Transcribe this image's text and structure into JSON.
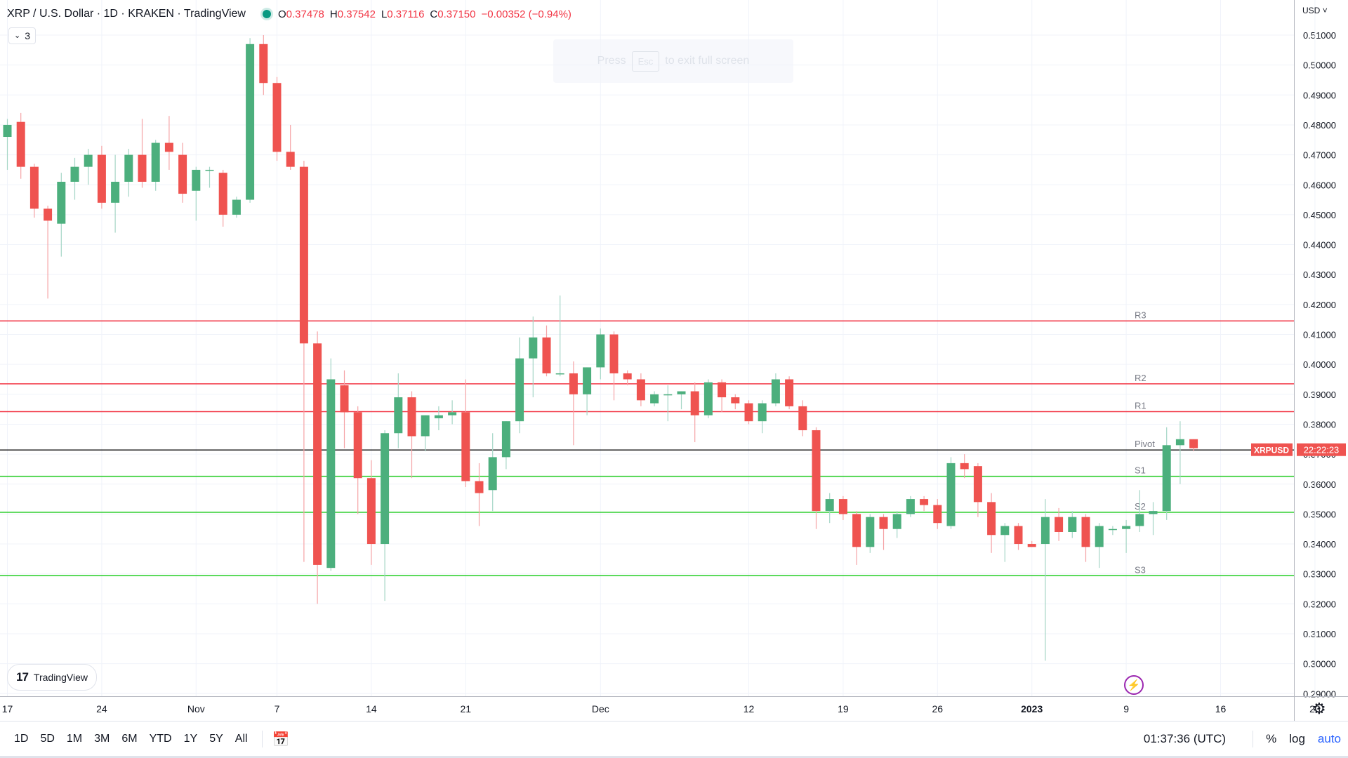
{
  "header": {
    "title": "XRP / U.S. Dollar · 1D · KRAKEN · TradingView",
    "open_label": "O",
    "open": "0.37478",
    "high_label": "H",
    "high": "0.37542",
    "low_label": "L",
    "low": "0.37116",
    "close_label": "C",
    "close": "0.37150",
    "change": "−0.00352 (−0.94%)"
  },
  "indicators_count": "3",
  "fullscreen_hint": {
    "press": "Press",
    "key": "Esc",
    "rest": "to exit full screen"
  },
  "currency": "USD",
  "logo_text": "TradingView",
  "price_label": {
    "symbol": "XRPUSD",
    "countdown": "22:22:23"
  },
  "colors": {
    "up": "#26a69a",
    "up_body": "#4caf7d",
    "down": "#ef5350",
    "resistance": "#f23645",
    "support": "#22cc22",
    "pivot": "#000000",
    "accent": "#2962ff"
  },
  "timeframes": [
    "1D",
    "5D",
    "1M",
    "3M",
    "6M",
    "YTD",
    "1Y",
    "5Y",
    "All"
  ],
  "clock": "01:37:36 (UTC)",
  "right_tools": {
    "percent": "%",
    "log": "log",
    "auto": "auto"
  },
  "icons": [
    "settings-gear-icon",
    "compare-calendar-icon",
    "lightning-icon",
    "chevron-down-icon",
    "indicators-eye-icon"
  ],
  "chart_data": {
    "type": "candlestick",
    "ylim": [
      0.29,
      0.51
    ],
    "y_ticks": [
      "0.51000",
      "0.50000",
      "0.49000",
      "0.48000",
      "0.47000",
      "0.46000",
      "0.45000",
      "0.44000",
      "0.43000",
      "0.42000",
      "0.41000",
      "0.40000",
      "0.39000",
      "0.38000",
      "0.37000",
      "0.36000",
      "0.35000",
      "0.34000",
      "0.33000",
      "0.32000",
      "0.31000",
      "0.30000",
      "0.29000"
    ],
    "x_ticks": [
      {
        "label": "17",
        "i": 0
      },
      {
        "label": "24",
        "i": 7
      },
      {
        "label": "Nov",
        "i": 14
      },
      {
        "label": "7",
        "i": 20
      },
      {
        "label": "14",
        "i": 27
      },
      {
        "label": "21",
        "i": 34
      },
      {
        "label": "Dec",
        "i": 44
      },
      {
        "label": "12",
        "i": 55
      },
      {
        "label": "19",
        "i": 62
      },
      {
        "label": "26",
        "i": 69
      },
      {
        "label": "2023",
        "i": 76
      },
      {
        "label": "9",
        "i": 83
      },
      {
        "label": "16",
        "i": 90
      },
      {
        "label": "23",
        "i": 97
      }
    ],
    "candles": [
      {
        "o": 0.476,
        "h": 0.482,
        "l": 0.465,
        "c": 0.48
      },
      {
        "o": 0.481,
        "h": 0.484,
        "l": 0.462,
        "c": 0.466
      },
      {
        "o": 0.466,
        "h": 0.467,
        "l": 0.449,
        "c": 0.452
      },
      {
        "o": 0.452,
        "h": 0.453,
        "l": 0.422,
        "c": 0.448
      },
      {
        "o": 0.447,
        "h": 0.464,
        "l": 0.436,
        "c": 0.461
      },
      {
        "o": 0.461,
        "h": 0.469,
        "l": 0.455,
        "c": 0.466
      },
      {
        "o": 0.466,
        "h": 0.472,
        "l": 0.46,
        "c": 0.47
      },
      {
        "o": 0.47,
        "h": 0.473,
        "l": 0.452,
        "c": 0.454
      },
      {
        "o": 0.454,
        "h": 0.47,
        "l": 0.444,
        "c": 0.461
      },
      {
        "o": 0.461,
        "h": 0.472,
        "l": 0.456,
        "c": 0.47
      },
      {
        "o": 0.47,
        "h": 0.482,
        "l": 0.459,
        "c": 0.461
      },
      {
        "o": 0.461,
        "h": 0.475,
        "l": 0.458,
        "c": 0.474
      },
      {
        "o": 0.474,
        "h": 0.483,
        "l": 0.465,
        "c": 0.471
      },
      {
        "o": 0.47,
        "h": 0.474,
        "l": 0.454,
        "c": 0.457
      },
      {
        "o": 0.458,
        "h": 0.466,
        "l": 0.448,
        "c": 0.465
      },
      {
        "o": 0.465,
        "h": 0.466,
        "l": 0.459,
        "c": 0.465
      },
      {
        "o": 0.464,
        "h": 0.465,
        "l": 0.446,
        "c": 0.45
      },
      {
        "o": 0.45,
        "h": 0.456,
        "l": 0.449,
        "c": 0.455
      },
      {
        "o": 0.455,
        "h": 0.509,
        "l": 0.454,
        "c": 0.507
      },
      {
        "o": 0.507,
        "h": 0.51,
        "l": 0.49,
        "c": 0.494
      },
      {
        "o": 0.494,
        "h": 0.496,
        "l": 0.468,
        "c": 0.471
      },
      {
        "o": 0.471,
        "h": 0.48,
        "l": 0.465,
        "c": 0.466
      },
      {
        "o": 0.466,
        "h": 0.468,
        "l": 0.334,
        "c": 0.407
      },
      {
        "o": 0.407,
        "h": 0.411,
        "l": 0.32,
        "c": 0.333
      },
      {
        "o": 0.332,
        "h": 0.402,
        "l": 0.331,
        "c": 0.395
      },
      {
        "o": 0.393,
        "h": 0.398,
        "l": 0.372,
        "c": 0.384
      },
      {
        "o": 0.384,
        "h": 0.386,
        "l": 0.35,
        "c": 0.362
      },
      {
        "o": 0.362,
        "h": 0.368,
        "l": 0.333,
        "c": 0.34
      },
      {
        "o": 0.34,
        "h": 0.378,
        "l": 0.321,
        "c": 0.377
      },
      {
        "o": 0.377,
        "h": 0.397,
        "l": 0.372,
        "c": 0.389
      },
      {
        "o": 0.389,
        "h": 0.391,
        "l": 0.362,
        "c": 0.376
      },
      {
        "o": 0.376,
        "h": 0.383,
        "l": 0.371,
        "c": 0.383
      },
      {
        "o": 0.382,
        "h": 0.386,
        "l": 0.378,
        "c": 0.383
      },
      {
        "o": 0.383,
        "h": 0.388,
        "l": 0.38,
        "c": 0.384
      },
      {
        "o": 0.384,
        "h": 0.395,
        "l": 0.359,
        "c": 0.361
      },
      {
        "o": 0.361,
        "h": 0.367,
        "l": 0.346,
        "c": 0.357
      },
      {
        "o": 0.358,
        "h": 0.377,
        "l": 0.351,
        "c": 0.369
      },
      {
        "o": 0.369,
        "h": 0.381,
        "l": 0.365,
        "c": 0.381
      },
      {
        "o": 0.381,
        "h": 0.409,
        "l": 0.377,
        "c": 0.402
      },
      {
        "o": 0.402,
        "h": 0.416,
        "l": 0.389,
        "c": 0.409
      },
      {
        "o": 0.409,
        "h": 0.413,
        "l": 0.396,
        "c": 0.397
      },
      {
        "o": 0.397,
        "h": 0.423,
        "l": 0.396,
        "c": 0.397
      },
      {
        "o": 0.397,
        "h": 0.401,
        "l": 0.373,
        "c": 0.39
      },
      {
        "o": 0.39,
        "h": 0.399,
        "l": 0.383,
        "c": 0.399
      },
      {
        "o": 0.399,
        "h": 0.412,
        "l": 0.395,
        "c": 0.41
      },
      {
        "o": 0.41,
        "h": 0.411,
        "l": 0.388,
        "c": 0.397
      },
      {
        "o": 0.397,
        "h": 0.398,
        "l": 0.393,
        "c": 0.395
      },
      {
        "o": 0.395,
        "h": 0.397,
        "l": 0.386,
        "c": 0.388
      },
      {
        "o": 0.387,
        "h": 0.391,
        "l": 0.386,
        "c": 0.39
      },
      {
        "o": 0.39,
        "h": 0.393,
        "l": 0.381,
        "c": 0.39
      },
      {
        "o": 0.39,
        "h": 0.391,
        "l": 0.385,
        "c": 0.391
      },
      {
        "o": 0.391,
        "h": 0.394,
        "l": 0.374,
        "c": 0.383
      },
      {
        "o": 0.383,
        "h": 0.395,
        "l": 0.382,
        "c": 0.394
      },
      {
        "o": 0.394,
        "h": 0.395,
        "l": 0.384,
        "c": 0.389
      },
      {
        "o": 0.389,
        "h": 0.39,
        "l": 0.385,
        "c": 0.387
      },
      {
        "o": 0.387,
        "h": 0.388,
        "l": 0.38,
        "c": 0.381
      },
      {
        "o": 0.381,
        "h": 0.388,
        "l": 0.377,
        "c": 0.387
      },
      {
        "o": 0.387,
        "h": 0.397,
        "l": 0.386,
        "c": 0.395
      },
      {
        "o": 0.395,
        "h": 0.396,
        "l": 0.385,
        "c": 0.386
      },
      {
        "o": 0.386,
        "h": 0.388,
        "l": 0.376,
        "c": 0.378
      },
      {
        "o": 0.378,
        "h": 0.379,
        "l": 0.345,
        "c": 0.351
      },
      {
        "o": 0.351,
        "h": 0.357,
        "l": 0.347,
        "c": 0.355
      },
      {
        "o": 0.355,
        "h": 0.356,
        "l": 0.348,
        "c": 0.35
      },
      {
        "o": 0.35,
        "h": 0.351,
        "l": 0.333,
        "c": 0.339
      },
      {
        "o": 0.339,
        "h": 0.35,
        "l": 0.337,
        "c": 0.349
      },
      {
        "o": 0.349,
        "h": 0.35,
        "l": 0.338,
        "c": 0.345
      },
      {
        "o": 0.345,
        "h": 0.351,
        "l": 0.342,
        "c": 0.35
      },
      {
        "o": 0.35,
        "h": 0.356,
        "l": 0.349,
        "c": 0.355
      },
      {
        "o": 0.355,
        "h": 0.356,
        "l": 0.351,
        "c": 0.353
      },
      {
        "o": 0.353,
        "h": 0.355,
        "l": 0.345,
        "c": 0.347
      },
      {
        "o": 0.346,
        "h": 0.369,
        "l": 0.345,
        "c": 0.367
      },
      {
        "o": 0.367,
        "h": 0.37,
        "l": 0.362,
        "c": 0.365
      },
      {
        "o": 0.366,
        "h": 0.367,
        "l": 0.349,
        "c": 0.354
      },
      {
        "o": 0.354,
        "h": 0.357,
        "l": 0.337,
        "c": 0.343
      },
      {
        "o": 0.343,
        "h": 0.347,
        "l": 0.334,
        "c": 0.346
      },
      {
        "o": 0.346,
        "h": 0.347,
        "l": 0.338,
        "c": 0.34
      },
      {
        "o": 0.34,
        "h": 0.341,
        "l": 0.339,
        "c": 0.339
      },
      {
        "o": 0.34,
        "h": 0.355,
        "l": 0.301,
        "c": 0.349
      },
      {
        "o": 0.349,
        "h": 0.352,
        "l": 0.341,
        "c": 0.344
      },
      {
        "o": 0.344,
        "h": 0.351,
        "l": 0.342,
        "c": 0.349
      },
      {
        "o": 0.349,
        "h": 0.35,
        "l": 0.334,
        "c": 0.339
      },
      {
        "o": 0.339,
        "h": 0.347,
        "l": 0.332,
        "c": 0.346
      },
      {
        "o": 0.345,
        "h": 0.346,
        "l": 0.343,
        "c": 0.345
      },
      {
        "o": 0.345,
        "h": 0.348,
        "l": 0.337,
        "c": 0.346
      },
      {
        "o": 0.346,
        "h": 0.358,
        "l": 0.344,
        "c": 0.35
      },
      {
        "o": 0.35,
        "h": 0.354,
        "l": 0.343,
        "c": 0.351
      },
      {
        "o": 0.351,
        "h": 0.379,
        "l": 0.348,
        "c": 0.373
      },
      {
        "o": 0.373,
        "h": 0.381,
        "l": 0.36,
        "c": 0.375
      },
      {
        "o": 0.375,
        "h": 0.375,
        "l": 0.371,
        "c": 0.372
      }
    ],
    "levels": [
      {
        "name": "R3",
        "value": 0.4145,
        "color": "resistance"
      },
      {
        "name": "R2",
        "value": 0.3935,
        "color": "resistance"
      },
      {
        "name": "R1",
        "value": 0.3842,
        "color": "resistance"
      },
      {
        "name": "Pivot",
        "value": 0.3714,
        "color": "pivot"
      },
      {
        "name": "S1",
        "value": 0.3626,
        "color": "support"
      },
      {
        "name": "S2",
        "value": 0.3506,
        "color": "support"
      },
      {
        "name": "S3",
        "value": 0.3294,
        "color": "support"
      }
    ],
    "current_price": 0.3715
  }
}
